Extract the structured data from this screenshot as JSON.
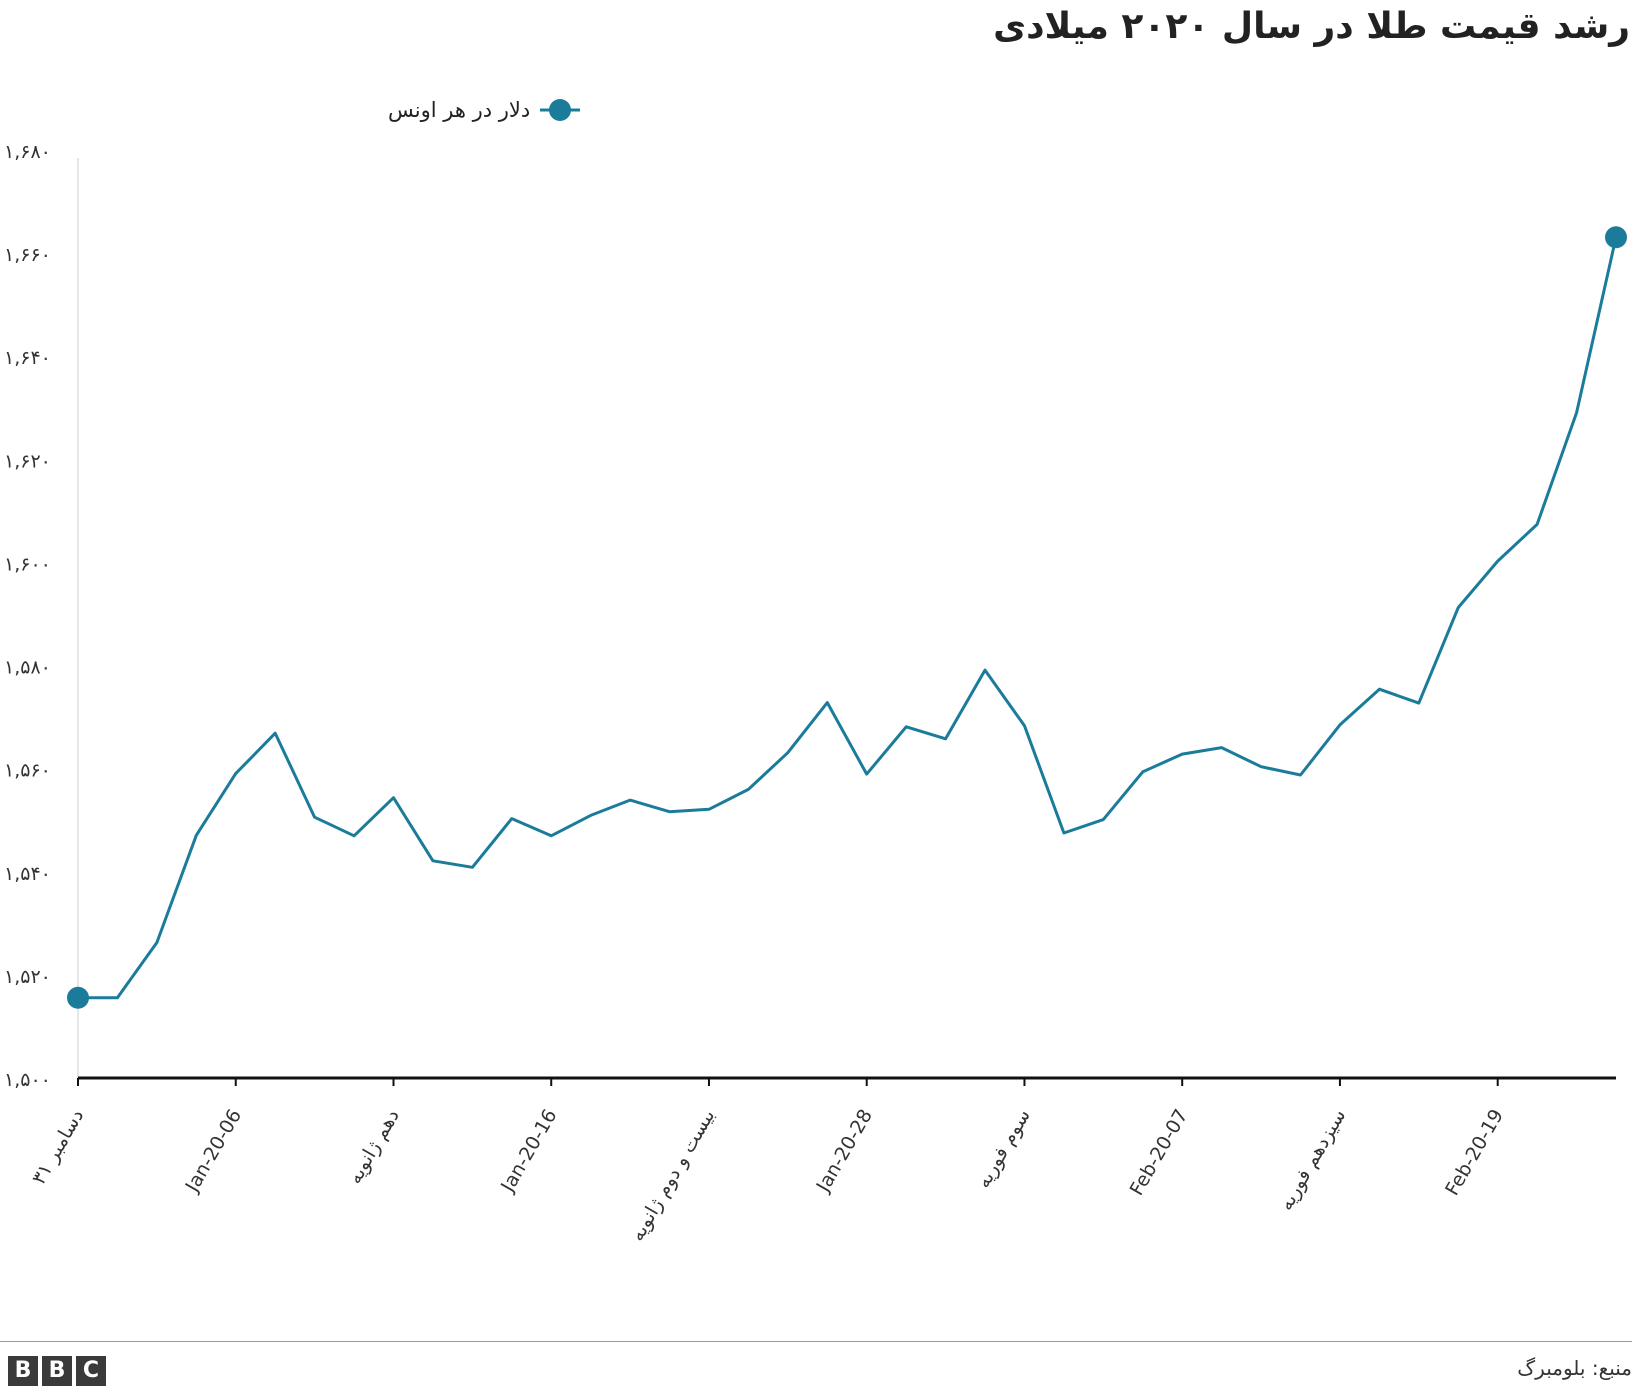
{
  "chart_data": {
    "type": "line",
    "title": "رشد قیمت طلا در سال ۲۰۲۰ میلادی",
    "xlabel": "",
    "ylabel": "",
    "series": [
      {
        "name": "دلار در هر اونس",
        "color": "#1b7b9b",
        "values": [
          1517.3,
          1517.3,
          1529.2,
          1552.3,
          1565.6,
          1574.3,
          1556.2,
          1552.2,
          1560.4,
          1546.8,
          1545.4,
          1555.9,
          1552.2,
          1556.6,
          1559.9,
          1557.4,
          1557.9,
          1562.2,
          1570.1,
          1580.9,
          1565.5,
          1575.7,
          1573.1,
          1587.9,
          1575.9,
          1552.8,
          1555.7,
          1566.0,
          1569.8,
          1571.2,
          1567.1,
          1565.3,
          1576.1,
          1583.8,
          1580.8,
          1601.4,
          1611.4,
          1619.3,
          1643.4,
          1681.2
        ]
      }
    ],
    "x_tick_labels": [
      "۳۱ دسامبر",
      "Jan-20-06",
      "دهم ژانویه",
      "Jan-20-16",
      "بیست و دوم ژانویه",
      "Jan-20-28",
      "سوم فوریه",
      "Feb-20-07",
      "سیزدهم فوریه",
      "Feb-20-19"
    ],
    "x_tick_every": 4,
    "y_ticks": [
      "۱,۵۰۰",
      "۱,۵۲۰",
      "۱,۵۴۰",
      "۱,۵۶۰",
      "۱,۵۸۰",
      "۱,۶۰۰",
      "۱,۶۲۰",
      "۱,۶۴۰",
      "۱,۶۶۰",
      "۱,۶۸۰"
    ],
    "ylim": [
      1500,
      1700
    ],
    "grid": false,
    "legend_position": "top",
    "markers": "first-and-last-points"
  },
  "footer": {
    "logo_letters": [
      "B",
      "B",
      "C"
    ],
    "source": "منبع: بلومبرگ"
  },
  "colors": {
    "line": "#1b7b9b",
    "axis": "#111111",
    "text": "#222222",
    "logo": "#3a3a3a"
  }
}
